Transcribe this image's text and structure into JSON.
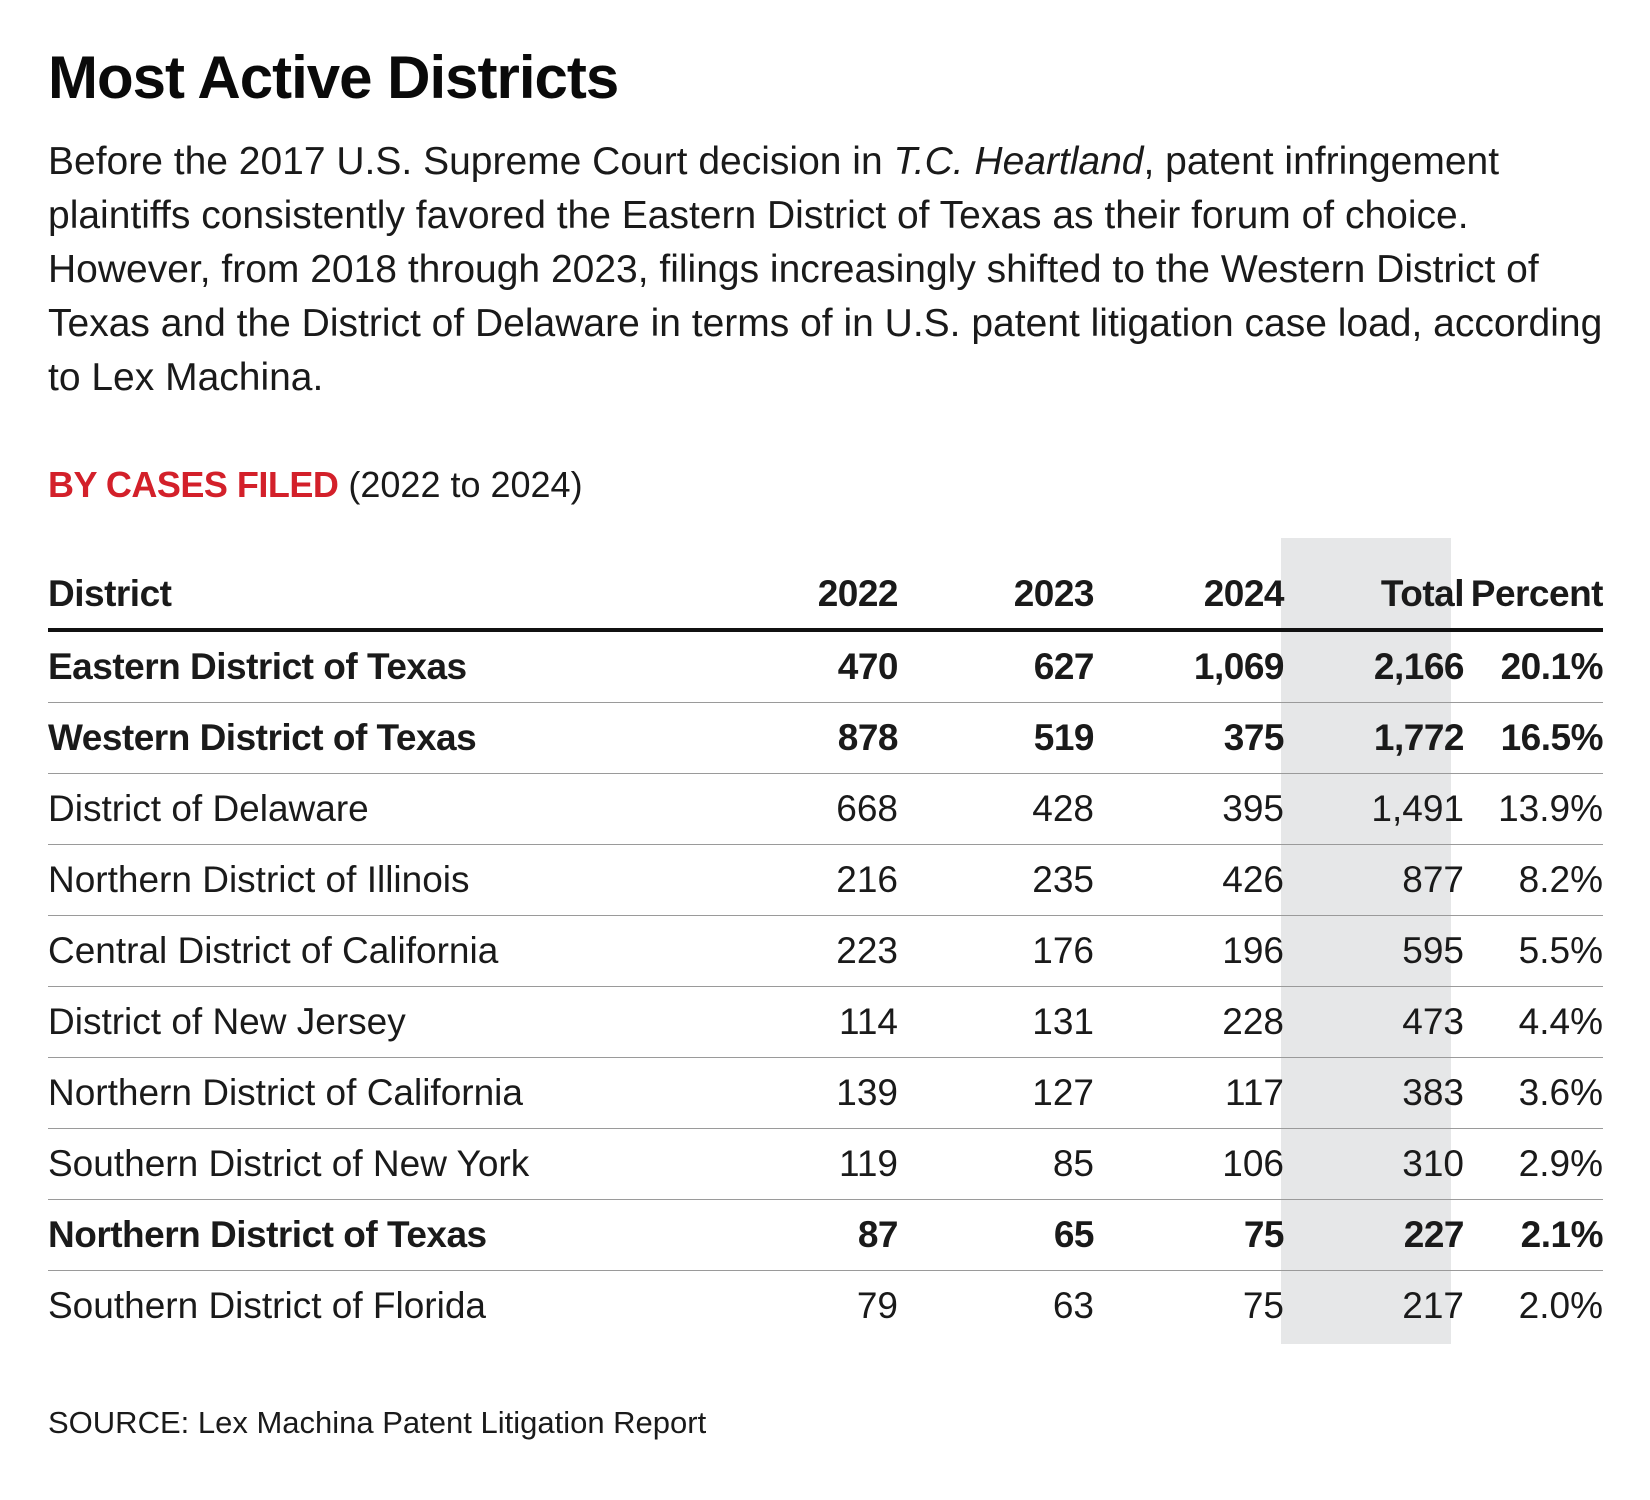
{
  "title": "Most Active Districts",
  "intro": {
    "part1": "Before the 2017 U.S. Supreme Court decision in ",
    "case_name": "T.C. Heartland",
    "part2": ", patent infringement plaintiffs consistently favored the Eastern District of Texas as their forum of choice. However, from 2018 through 2023, filings increasingly shifted to the Western District of Texas and the District of Delaware in terms of in U.S. patent litigation case load, according to Lex Machina."
  },
  "subhead": {
    "label": "BY CASES FILED",
    "range": " (2022 to 2024)"
  },
  "colors": {
    "accent_red": "#d3202a",
    "total_band": "#e6e7e8",
    "text": "#1a1a1a"
  },
  "table": {
    "headers": {
      "district": "District",
      "y2022": "2022",
      "y2023": "2023",
      "y2024": "2024",
      "total": "Total",
      "percent": "Percent"
    },
    "rows": [
      {
        "district": "Eastern District of Texas",
        "y2022": "470",
        "y2023": "627",
        "y2024": "1,069",
        "total": "2,166",
        "percent": "20.1%",
        "bold": true
      },
      {
        "district": "Western District of Texas",
        "y2022": "878",
        "y2023": "519",
        "y2024": "375",
        "total": "1,772",
        "percent": "16.5%",
        "bold": true
      },
      {
        "district": "District of Delaware",
        "y2022": "668",
        "y2023": "428",
        "y2024": "395",
        "total": "1,491",
        "percent": "13.9%",
        "bold": false
      },
      {
        "district": "Northern District of Illinois",
        "y2022": "216",
        "y2023": "235",
        "y2024": "426",
        "total": "877",
        "percent": "8.2%",
        "bold": false
      },
      {
        "district": "Central District of California",
        "y2022": "223",
        "y2023": "176",
        "y2024": "196",
        "total": "595",
        "percent": "5.5%",
        "bold": false
      },
      {
        "district": "District of New Jersey",
        "y2022": "114",
        "y2023": "131",
        "y2024": "228",
        "total": "473",
        "percent": "4.4%",
        "bold": false
      },
      {
        "district": "Northern District of California",
        "y2022": "139",
        "y2023": "127",
        "y2024": "117",
        "total": "383",
        "percent": "3.6%",
        "bold": false
      },
      {
        "district": "Southern District of New York",
        "y2022": "119",
        "y2023": "85",
        "y2024": "106",
        "total": "310",
        "percent": "2.9%",
        "bold": false
      },
      {
        "district": "Northern District of Texas",
        "y2022": "87",
        "y2023": "65",
        "y2024": "75",
        "total": "227",
        "percent": "2.1%",
        "bold": true
      },
      {
        "district": "Southern District of Florida",
        "y2022": "79",
        "y2023": "63",
        "y2024": "75",
        "total": "217",
        "percent": "2.0%",
        "bold": false
      }
    ]
  },
  "source": "SOURCE: Lex Machina Patent Litigation Report"
}
